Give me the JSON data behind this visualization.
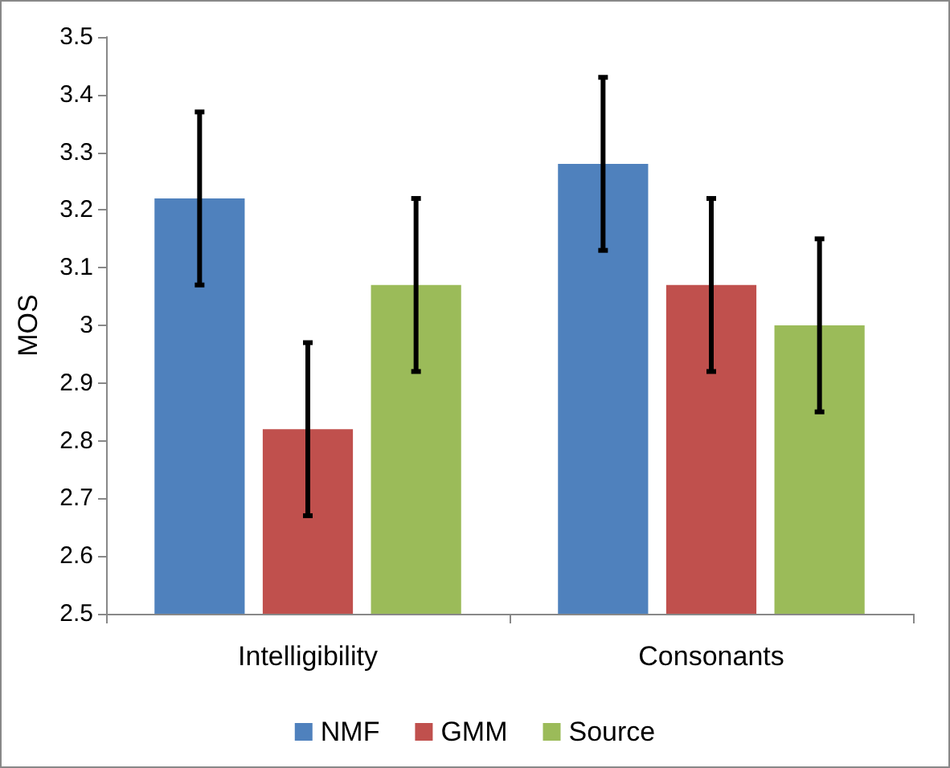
{
  "chart_data": {
    "type": "bar",
    "ylabel": "MOS",
    "categories": [
      "Intelligibility",
      "Consonants"
    ],
    "series": [
      {
        "name": "NMF",
        "color": "#4f81bd",
        "values": [
          3.22,
          3.28
        ],
        "errors": [
          0.15,
          0.15
        ]
      },
      {
        "name": "GMM",
        "color": "#c0504d",
        "values": [
          2.82,
          3.07
        ],
        "errors": [
          0.15,
          0.15
        ]
      },
      {
        "name": "Source",
        "color": "#9bbb59",
        "values": [
          3.07,
          3.0
        ],
        "errors": [
          0.15,
          0.15
        ]
      }
    ],
    "ylim": [
      2.5,
      3.5
    ],
    "yticks": [
      2.5,
      2.6,
      2.7,
      2.8,
      2.9,
      3,
      3.1,
      3.2,
      3.3,
      3.4,
      3.5
    ],
    "grid": false,
    "legend": "bottom"
  }
}
